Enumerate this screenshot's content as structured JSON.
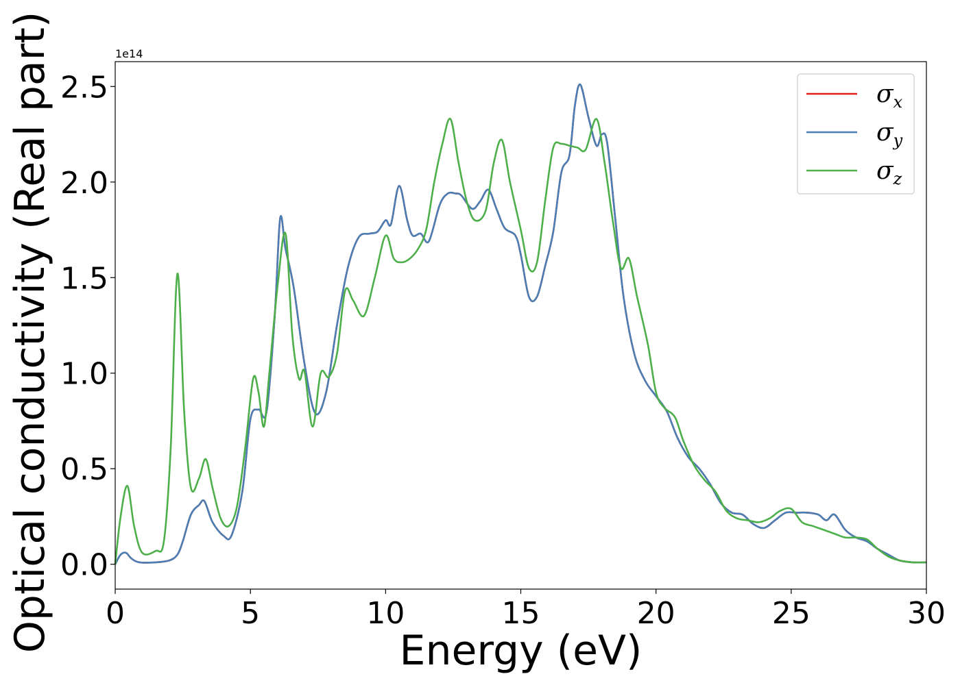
{
  "chart_data": {
    "type": "line",
    "xlabel": "Energy (eV)",
    "ylabel": "Optical conductivity (Real part)",
    "y_offset_text": "1e14",
    "xlim": [
      0,
      30
    ],
    "ylim": [
      -0.13,
      2.63
    ],
    "x_ticks": [
      0,
      5,
      10,
      15,
      20,
      25,
      30
    ],
    "y_ticks": [
      0.0,
      0.5,
      1.0,
      1.5,
      2.0,
      2.5
    ],
    "x_tick_labels": [
      "0",
      "5",
      "10",
      "15",
      "20",
      "25",
      "30"
    ],
    "y_tick_labels": [
      "0.0",
      "0.5",
      "1.0",
      "1.5",
      "2.0",
      "2.5"
    ],
    "grid": false,
    "legend_position": "top-right",
    "series": [
      {
        "name": "σx",
        "symbol": "σ",
        "subscript": "x",
        "color": "#e41a1c",
        "x": [
          0,
          0.2,
          0.4,
          0.6,
          0.9,
          1.5,
          2.0,
          2.3,
          2.5,
          2.8,
          3.1,
          3.3,
          3.6,
          4.0,
          4.3,
          4.7,
          5.0,
          5.3,
          5.6,
          5.9,
          6.1,
          6.3,
          6.6,
          7.0,
          7.4,
          7.8,
          8.2,
          8.6,
          9.0,
          9.4,
          9.7,
          10.0,
          10.2,
          10.5,
          10.8,
          11.0,
          11.3,
          11.6,
          12.0,
          12.3,
          12.6,
          12.8,
          13.2,
          13.5,
          13.8,
          14.1,
          14.4,
          14.8,
          15.0,
          15.3,
          15.6,
          15.9,
          16.2,
          16.5,
          16.8,
          17.0,
          17.2,
          17.5,
          17.8,
          18.0,
          18.2,
          18.5,
          18.8,
          19.2,
          19.6,
          20.0,
          20.4,
          20.8,
          21.2,
          21.6,
          22.0,
          22.4,
          22.8,
          23.2,
          23.6,
          24.0,
          24.4,
          24.8,
          25.2,
          25.6,
          26.0,
          26.3,
          26.6,
          27.0,
          27.4,
          27.8,
          28.2,
          28.6,
          29.0,
          29.5,
          30.0
        ],
        "values": [
          0.0,
          0.05,
          0.06,
          0.03,
          0.01,
          0.01,
          0.02,
          0.05,
          0.12,
          0.26,
          0.31,
          0.33,
          0.22,
          0.15,
          0.15,
          0.38,
          0.76,
          0.81,
          0.8,
          1.3,
          1.81,
          1.65,
          1.45,
          1.05,
          0.79,
          0.9,
          1.25,
          1.55,
          1.71,
          1.73,
          1.74,
          1.8,
          1.78,
          1.98,
          1.8,
          1.72,
          1.73,
          1.69,
          1.88,
          1.94,
          1.94,
          1.93,
          1.86,
          1.9,
          1.96,
          1.86,
          1.76,
          1.72,
          1.62,
          1.4,
          1.4,
          1.56,
          1.74,
          2.05,
          2.14,
          2.4,
          2.51,
          2.34,
          2.19,
          2.25,
          2.2,
          1.8,
          1.4,
          1.1,
          0.96,
          0.88,
          0.8,
          0.66,
          0.56,
          0.5,
          0.42,
          0.32,
          0.27,
          0.26,
          0.21,
          0.19,
          0.23,
          0.27,
          0.27,
          0.27,
          0.26,
          0.23,
          0.26,
          0.18,
          0.14,
          0.12,
          0.08,
          0.05,
          0.02,
          0.01,
          0.01
        ]
      },
      {
        "name": "σy",
        "symbol": "σ",
        "subscript": "y",
        "color": "#4a7fb5",
        "x": [
          0,
          0.2,
          0.4,
          0.6,
          0.9,
          1.5,
          2.0,
          2.3,
          2.5,
          2.8,
          3.1,
          3.3,
          3.6,
          4.0,
          4.3,
          4.7,
          5.0,
          5.3,
          5.6,
          5.9,
          6.1,
          6.3,
          6.6,
          7.0,
          7.4,
          7.8,
          8.2,
          8.6,
          9.0,
          9.4,
          9.7,
          10.0,
          10.2,
          10.5,
          10.8,
          11.0,
          11.3,
          11.6,
          12.0,
          12.3,
          12.6,
          12.8,
          13.2,
          13.5,
          13.8,
          14.1,
          14.4,
          14.8,
          15.0,
          15.3,
          15.6,
          15.9,
          16.2,
          16.5,
          16.8,
          17.0,
          17.2,
          17.5,
          17.8,
          18.0,
          18.2,
          18.5,
          18.8,
          19.2,
          19.6,
          20.0,
          20.4,
          20.8,
          21.2,
          21.6,
          22.0,
          22.4,
          22.8,
          23.2,
          23.6,
          24.0,
          24.4,
          24.8,
          25.2,
          25.6,
          26.0,
          26.3,
          26.6,
          27.0,
          27.4,
          27.8,
          28.2,
          28.6,
          29.0,
          29.5,
          30.0
        ],
        "values": [
          0.0,
          0.05,
          0.06,
          0.03,
          0.01,
          0.01,
          0.02,
          0.05,
          0.12,
          0.26,
          0.31,
          0.33,
          0.22,
          0.15,
          0.15,
          0.38,
          0.76,
          0.81,
          0.8,
          1.3,
          1.81,
          1.65,
          1.45,
          1.05,
          0.79,
          0.9,
          1.25,
          1.55,
          1.71,
          1.73,
          1.74,
          1.8,
          1.78,
          1.98,
          1.8,
          1.72,
          1.73,
          1.69,
          1.88,
          1.94,
          1.94,
          1.93,
          1.86,
          1.9,
          1.96,
          1.86,
          1.76,
          1.72,
          1.62,
          1.4,
          1.4,
          1.56,
          1.74,
          2.05,
          2.14,
          2.4,
          2.51,
          2.34,
          2.19,
          2.25,
          2.2,
          1.8,
          1.4,
          1.1,
          0.96,
          0.88,
          0.8,
          0.66,
          0.56,
          0.5,
          0.42,
          0.32,
          0.27,
          0.26,
          0.21,
          0.19,
          0.23,
          0.27,
          0.27,
          0.27,
          0.26,
          0.23,
          0.26,
          0.18,
          0.14,
          0.12,
          0.08,
          0.05,
          0.02,
          0.01,
          0.01
        ]
      },
      {
        "name": "σz",
        "symbol": "σ",
        "subscript": "z",
        "color": "#4daf4a",
        "x": [
          0,
          0.2,
          0.45,
          0.7,
          1.0,
          1.5,
          1.8,
          2.05,
          2.3,
          2.55,
          2.8,
          3.1,
          3.35,
          3.6,
          3.9,
          4.2,
          4.5,
          4.8,
          5.1,
          5.3,
          5.5,
          5.7,
          6.0,
          6.3,
          6.55,
          6.8,
          7.0,
          7.3,
          7.6,
          7.9,
          8.2,
          8.5,
          8.8,
          9.2,
          9.6,
          10.0,
          10.3,
          10.6,
          10.9,
          11.2,
          11.5,
          11.8,
          12.1,
          12.4,
          12.7,
          13.0,
          13.3,
          13.7,
          14.0,
          14.3,
          14.6,
          15.0,
          15.3,
          15.6,
          15.9,
          16.2,
          16.5,
          16.8,
          17.1,
          17.4,
          17.8,
          18.1,
          18.4,
          18.7,
          19.0,
          19.3,
          19.7,
          20.0,
          20.3,
          20.7,
          21.0,
          21.4,
          21.8,
          22.2,
          22.6,
          23.0,
          23.4,
          23.8,
          24.2,
          24.6,
          25.0,
          25.4,
          25.8,
          26.2,
          26.6,
          27.0,
          27.4,
          27.8,
          28.2,
          28.6,
          29.0,
          29.5,
          30.0
        ],
        "values": [
          0.0,
          0.25,
          0.41,
          0.2,
          0.06,
          0.07,
          0.12,
          0.6,
          1.52,
          0.8,
          0.4,
          0.45,
          0.55,
          0.4,
          0.24,
          0.2,
          0.3,
          0.6,
          0.97,
          0.9,
          0.72,
          1.0,
          1.45,
          1.73,
          1.2,
          0.97,
          1.01,
          0.72,
          1.0,
          0.98,
          1.1,
          1.43,
          1.38,
          1.3,
          1.5,
          1.72,
          1.6,
          1.58,
          1.6,
          1.65,
          1.75,
          2.0,
          2.2,
          2.33,
          2.1,
          1.9,
          1.8,
          1.85,
          2.1,
          2.22,
          2.0,
          1.75,
          1.55,
          1.58,
          1.9,
          2.18,
          2.2,
          2.19,
          2.18,
          2.17,
          2.33,
          2.1,
          1.8,
          1.55,
          1.6,
          1.4,
          1.15,
          0.9,
          0.82,
          0.77,
          0.65,
          0.52,
          0.44,
          0.38,
          0.28,
          0.24,
          0.23,
          0.22,
          0.24,
          0.28,
          0.29,
          0.22,
          0.2,
          0.18,
          0.16,
          0.14,
          0.14,
          0.13,
          0.08,
          0.04,
          0.02,
          0.01,
          0.01
        ]
      }
    ]
  }
}
